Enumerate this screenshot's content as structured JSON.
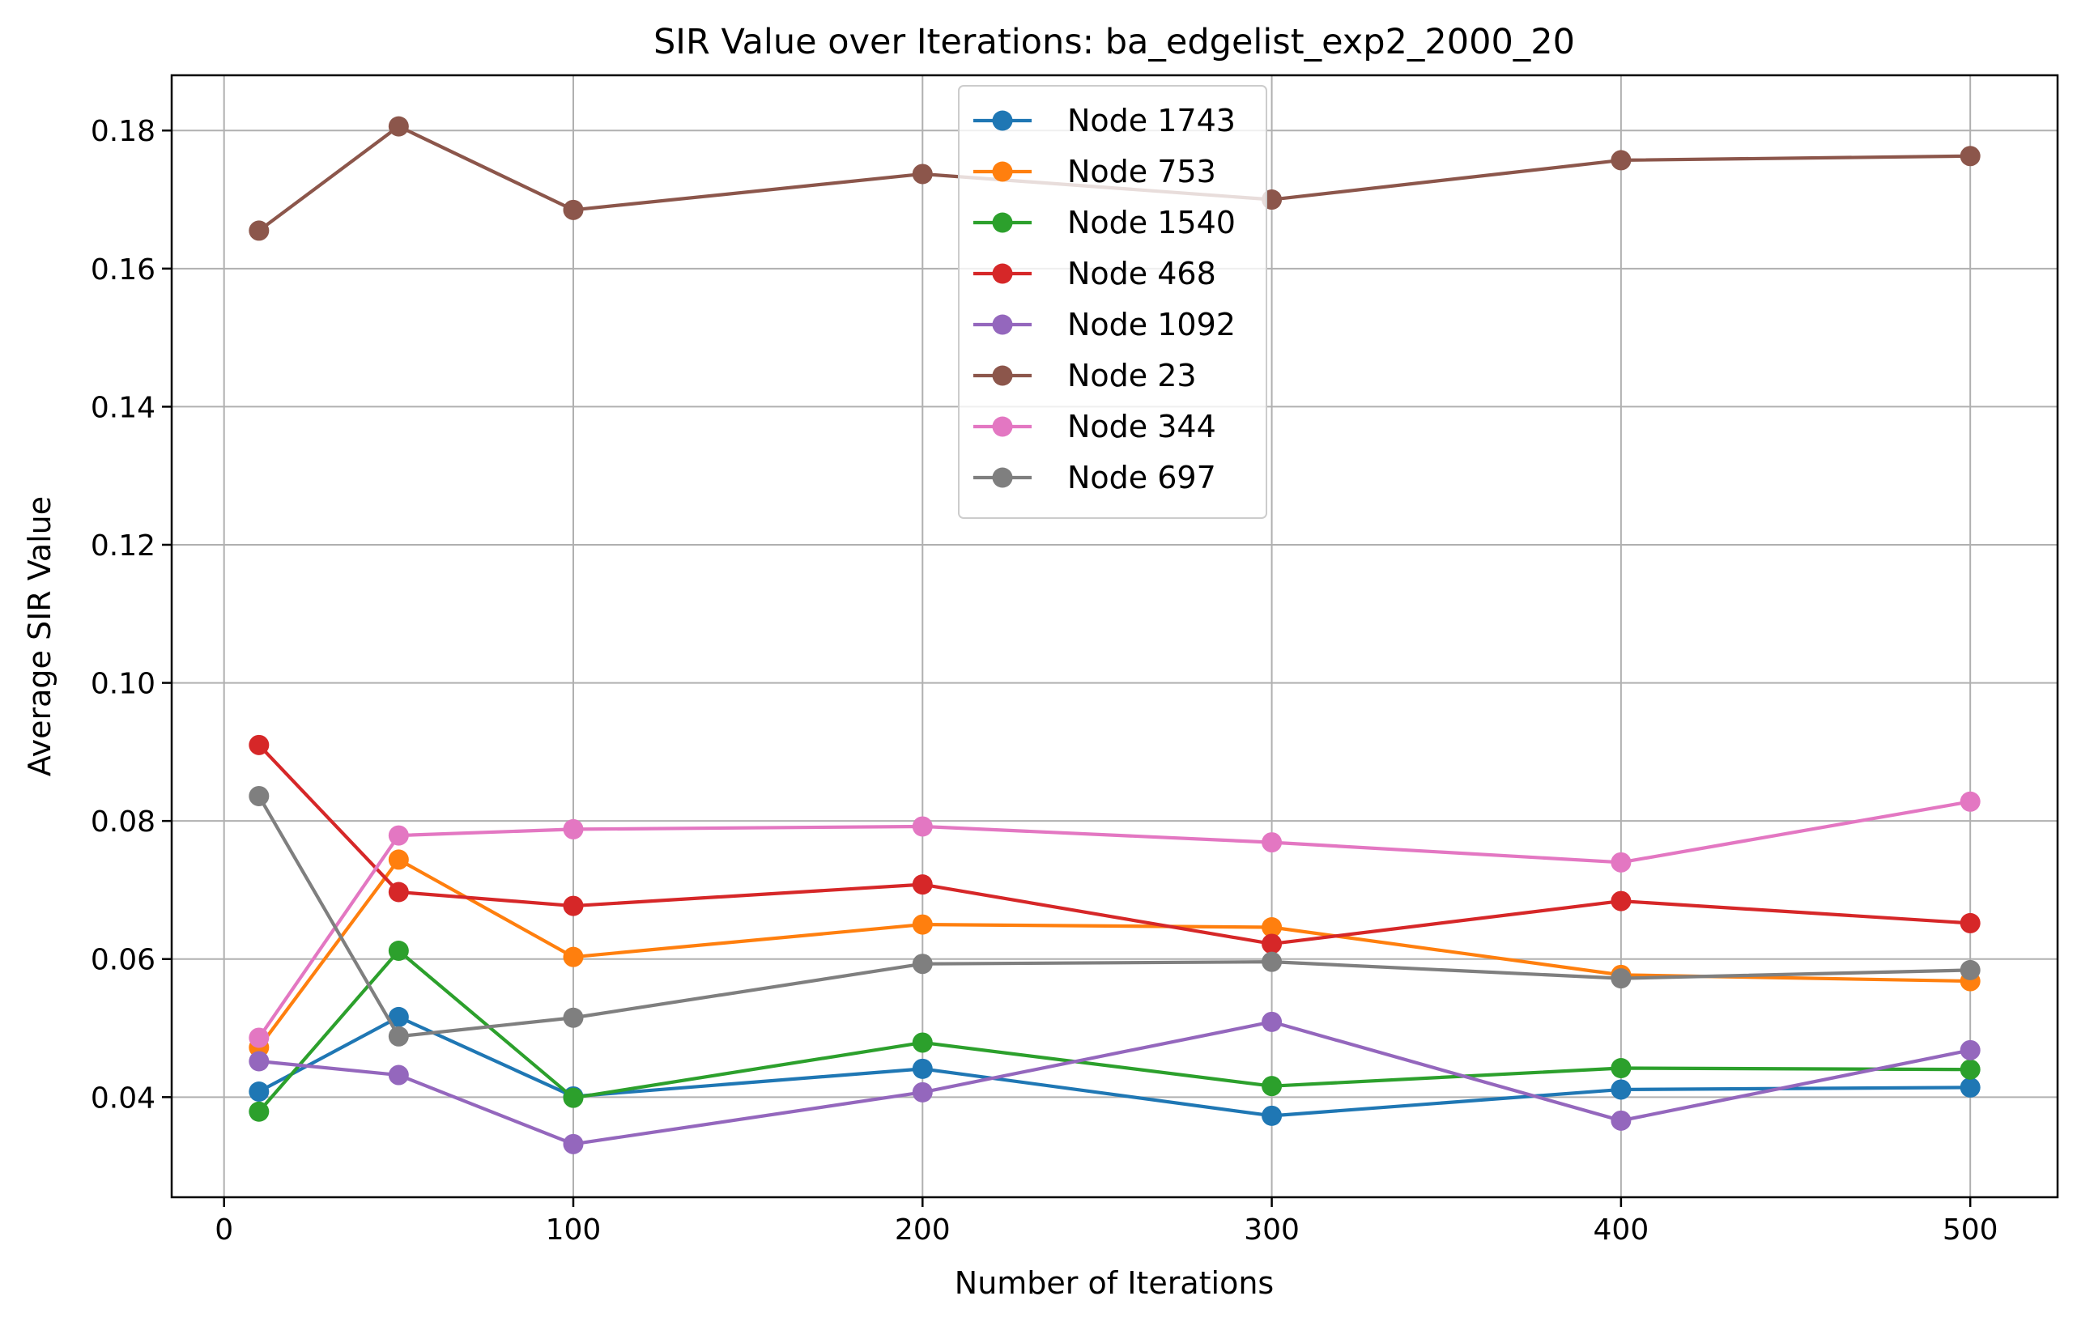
{
  "chart_data": {
    "type": "line",
    "title": "SIR Value over Iterations: ba_edgelist_exp2_2000_20",
    "xlabel": "Number of Iterations",
    "ylabel": "Average SIR Value",
    "x": [
      10,
      50,
      100,
      200,
      300,
      400,
      500
    ],
    "xlim": [
      -15,
      525
    ],
    "ylim": [
      0.0255,
      0.188
    ],
    "xticks": [
      0,
      100,
      200,
      300,
      400,
      500
    ],
    "xtick_labels": [
      "0",
      "100",
      "200",
      "300",
      "400",
      "500"
    ],
    "yticks": [
      0.04,
      0.06,
      0.08,
      0.1,
      0.12,
      0.14,
      0.16,
      0.18
    ],
    "ytick_labels": [
      "0.04",
      "0.06",
      "0.08",
      "0.10",
      "0.12",
      "0.14",
      "0.16",
      "0.18"
    ],
    "grid": true,
    "legend_position": "upper center",
    "series": [
      {
        "name": "Node 1743",
        "color": "#1f77b4",
        "values": [
          0.0408,
          0.0516,
          0.0401,
          0.0441,
          0.0373,
          0.0411,
          0.0414
        ]
      },
      {
        "name": "Node 753",
        "color": "#ff7f0e",
        "values": [
          0.0472,
          0.0744,
          0.0603,
          0.065,
          0.0646,
          0.0577,
          0.0568
        ]
      },
      {
        "name": "Node 1540",
        "color": "#2ca02c",
        "values": [
          0.0379,
          0.0612,
          0.0399,
          0.0479,
          0.0416,
          0.0442,
          0.044
        ]
      },
      {
        "name": "Node 468",
        "color": "#d62728",
        "values": [
          0.091,
          0.0697,
          0.0677,
          0.0708,
          0.0622,
          0.0684,
          0.0652
        ]
      },
      {
        "name": "Node 1092",
        "color": "#9467bd",
        "values": [
          0.0452,
          0.0432,
          0.0332,
          0.0407,
          0.0509,
          0.0366,
          0.0468
        ]
      },
      {
        "name": "Node 23",
        "color": "#8c564b",
        "values": [
          0.1655,
          0.1806,
          0.1685,
          0.1737,
          0.17,
          0.1757,
          0.1763
        ]
      },
      {
        "name": "Node 344",
        "color": "#e377c2",
        "values": [
          0.0486,
          0.0779,
          0.0788,
          0.0792,
          0.0769,
          0.074,
          0.0828
        ]
      },
      {
        "name": "Node 697",
        "color": "#7f7f7f",
        "values": [
          0.0836,
          0.0488,
          0.0515,
          0.0593,
          0.0596,
          0.0572,
          0.0584
        ]
      }
    ]
  }
}
